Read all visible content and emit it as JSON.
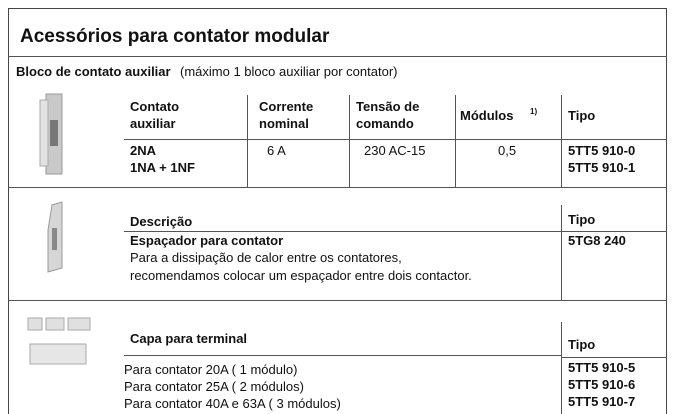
{
  "title": "Acessórios para contator modular",
  "section1": {
    "heading": "Bloco de contato auxiliar",
    "note": "(máximo 1 bloco auxiliar por contator)",
    "columns": [
      {
        "lines": [
          "Contato",
          "auxiliar"
        ]
      },
      {
        "lines": [
          "Corrente",
          "nominal"
        ]
      },
      {
        "lines": [
          "Tensão de",
          "comando"
        ]
      },
      {
        "lines": [
          "Módulos"
        ],
        "footnote": "1)"
      },
      {
        "lines": [
          "Tipo"
        ]
      }
    ],
    "row": {
      "contact": [
        "2NA",
        "1NA + 1NF"
      ],
      "current": "6 A",
      "voltage": "230 AC-15",
      "modules": "0,5",
      "types": [
        "5TT5 910-0",
        "5TT5 910-1"
      ]
    }
  },
  "section2": {
    "header": "Descrição",
    "type_header": "Tipo",
    "name": "Espaçador para contator",
    "description": [
      "Para a dissipação de calor entre os contatores,",
      "recomendamos colocar um espaçador entre dois contactor."
    ],
    "type": "5TG8 240"
  },
  "section3": {
    "header": "Capa para terminal",
    "type_header": "Tipo",
    "items": [
      "Para contator 20A ( 1 módulo)",
      "Para contator 25A ( 2 módulos)",
      "Para contator 40A e 63A ( 3 módulos)"
    ],
    "types": [
      "5TT5 910-5",
      "5TT5 910-6",
      "5TT5 910-7"
    ]
  }
}
